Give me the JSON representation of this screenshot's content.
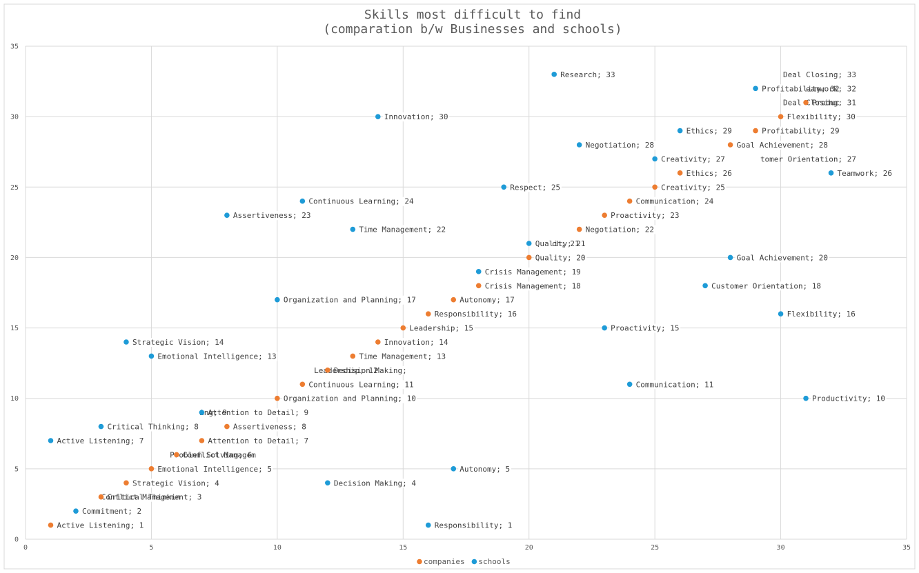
{
  "chart_data": {
    "type": "scatter",
    "title_lines": [
      "Skills most difficult to find",
      "(comparation b/w Businesses and schools)"
    ],
    "xlabel": "",
    "ylabel": "",
    "xlim": [
      0,
      35
    ],
    "ylim": [
      0,
      35
    ],
    "x_ticks": [
      0,
      5,
      10,
      15,
      20,
      25,
      30,
      35
    ],
    "y_ticks": [
      0,
      5,
      10,
      15,
      20,
      25,
      30,
      35
    ],
    "grid": true,
    "legend_position": "bottom",
    "series": [
      {
        "name": "companies",
        "color": "#ED7D31",
        "points": [
          {
            "x": 1,
            "y": 1,
            "label": "Active Listening; 1"
          },
          {
            "x": 3,
            "y": 3,
            "label": "Critical Thinkin"
          },
          {
            "x": 4,
            "y": 4,
            "label": "Strategic Vision; 4"
          },
          {
            "x": 5,
            "y": 5,
            "label": "Emotional Intelligence; 5"
          },
          {
            "x": 6,
            "y": 6,
            "label": "Conflict Managem"
          },
          {
            "x": 7,
            "y": 7,
            "label": "Attention to Detail; 7"
          },
          {
            "x": 8,
            "y": 8,
            "label": "Assertiveness; 8"
          },
          {
            "x": 10,
            "y": 10,
            "label": "Organization and Planning; 10"
          },
          {
            "x": 11,
            "y": 11,
            "label": "Continuous Learning; 11"
          },
          {
            "x": 12,
            "y": 12,
            "label": "Decision Making;"
          },
          {
            "x": 13,
            "y": 13,
            "label": "Time Management; 13"
          },
          {
            "x": 14,
            "y": 14,
            "label": "Innovation; 14"
          },
          {
            "x": 15,
            "y": 15,
            "label": "Leadership; 15"
          },
          {
            "x": 16,
            "y": 16,
            "label": "Responsibility; 16"
          },
          {
            "x": 17,
            "y": 17,
            "label": "Autonomy; 17"
          },
          {
            "x": 18,
            "y": 18,
            "label": "Crisis Management; 18"
          },
          {
            "x": 20,
            "y": 20,
            "label": "Quality; 20"
          },
          {
            "x": 22,
            "y": 22,
            "label": "Negotiation; 22"
          },
          {
            "x": 23,
            "y": 23,
            "label": "Proactivity; 23"
          },
          {
            "x": 24,
            "y": 24,
            "label": "Communication; 24"
          },
          {
            "x": 25,
            "y": 25,
            "label": "Creativity; 25"
          },
          {
            "x": 26,
            "y": 26,
            "label": "Ethics; 26"
          },
          {
            "x": 28,
            "y": 28,
            "label": "Goal Achievement; 28"
          },
          {
            "x": 29,
            "y": 29,
            "label": "Profitability; 29"
          },
          {
            "x": 30,
            "y": 30,
            "label": "Flexibility; 30"
          },
          {
            "x": 31,
            "y": 31,
            "label": "Produc"
          }
        ]
      },
      {
        "name": "schools",
        "color": "#1E9BD7",
        "points": [
          {
            "x": 1,
            "y": 7,
            "label": "Active Listening; 7"
          },
          {
            "x": 2,
            "y": 2,
            "label": "Commitment; 2"
          },
          {
            "x": 3,
            "y": 8,
            "label": "Critical Thinking; 8"
          },
          {
            "x": 4,
            "y": 14,
            "label": "Strategic Vision; 14"
          },
          {
            "x": 5,
            "y": 13,
            "label": "Emotional Intelligence; 13"
          },
          {
            "x": 7,
            "y": 9,
            "label": "Attention to Detail; 9"
          },
          {
            "x": 8,
            "y": 23,
            "label": "Assertiveness; 23"
          },
          {
            "x": 10,
            "y": 17,
            "label": "Organization and Planning; 17"
          },
          {
            "x": 11,
            "y": 24,
            "label": "Continuous Learning; 24"
          },
          {
            "x": 12,
            "y": 4,
            "label": "Decision Making; 4"
          },
          {
            "x": 13,
            "y": 22,
            "label": "Time Management; 22"
          },
          {
            "x": 14,
            "y": 30,
            "label": "Innovation; 30"
          },
          {
            "x": 16,
            "y": 1,
            "label": "Responsibility; 1"
          },
          {
            "x": 17,
            "y": 5,
            "label": "Autonomy; 5"
          },
          {
            "x": 18,
            "y": 19,
            "label": "Crisis Management; 19"
          },
          {
            "x": 19,
            "y": 25,
            "label": "Respect; 25"
          },
          {
            "x": 20,
            "y": 21,
            "label": "Quality; 21"
          },
          {
            "x": 21,
            "y": 33,
            "label": "Research; 33"
          },
          {
            "x": 22,
            "y": 28,
            "label": "Negotiation; 28"
          },
          {
            "x": 23,
            "y": 15,
            "label": "Proactivity; 15"
          },
          {
            "x": 24,
            "y": 11,
            "label": "Communication; 11"
          },
          {
            "x": 25,
            "y": 27,
            "label": "Creativity; 27"
          },
          {
            "x": 26,
            "y": 29,
            "label": "Ethics; 29"
          },
          {
            "x": 27,
            "y": 18,
            "label": "Customer Orientation; 18"
          },
          {
            "x": 28,
            "y": 20,
            "label": "Goal Achievement; 20"
          },
          {
            "x": 29,
            "y": 32,
            "label": "Profitability; 32"
          },
          {
            "x": 30,
            "y": 16,
            "label": "Flexibility; 16"
          },
          {
            "x": 31,
            "y": 10,
            "label": "Productivity; 10"
          },
          {
            "x": 32,
            "y": 26,
            "label": "Teamwork; 26"
          }
        ]
      }
    ],
    "orphan_labels": [
      {
        "x": 33,
        "y": 33,
        "text": "Deal Closing; 33"
      },
      {
        "x": 33,
        "y": 32,
        "text": "eamwork; 32"
      },
      {
        "x": 33,
        "y": 31,
        "text": "Deal Closing; 31"
      },
      {
        "x": 33,
        "y": 27,
        "text": "tomer Orientation; 27"
      },
      {
        "x": 14,
        "y": 12,
        "text": "Leadership; 12"
      },
      {
        "x": 22,
        "y": 21,
        "text": "ch; 21"
      },
      {
        "x": 8,
        "y": 9,
        "text": "ing; 9"
      },
      {
        "x": 9,
        "y": 6,
        "text": "Problem Solving; 6"
      },
      {
        "x": 7,
        "y": 3,
        "text": "Conflict Management; 3"
      }
    ]
  }
}
